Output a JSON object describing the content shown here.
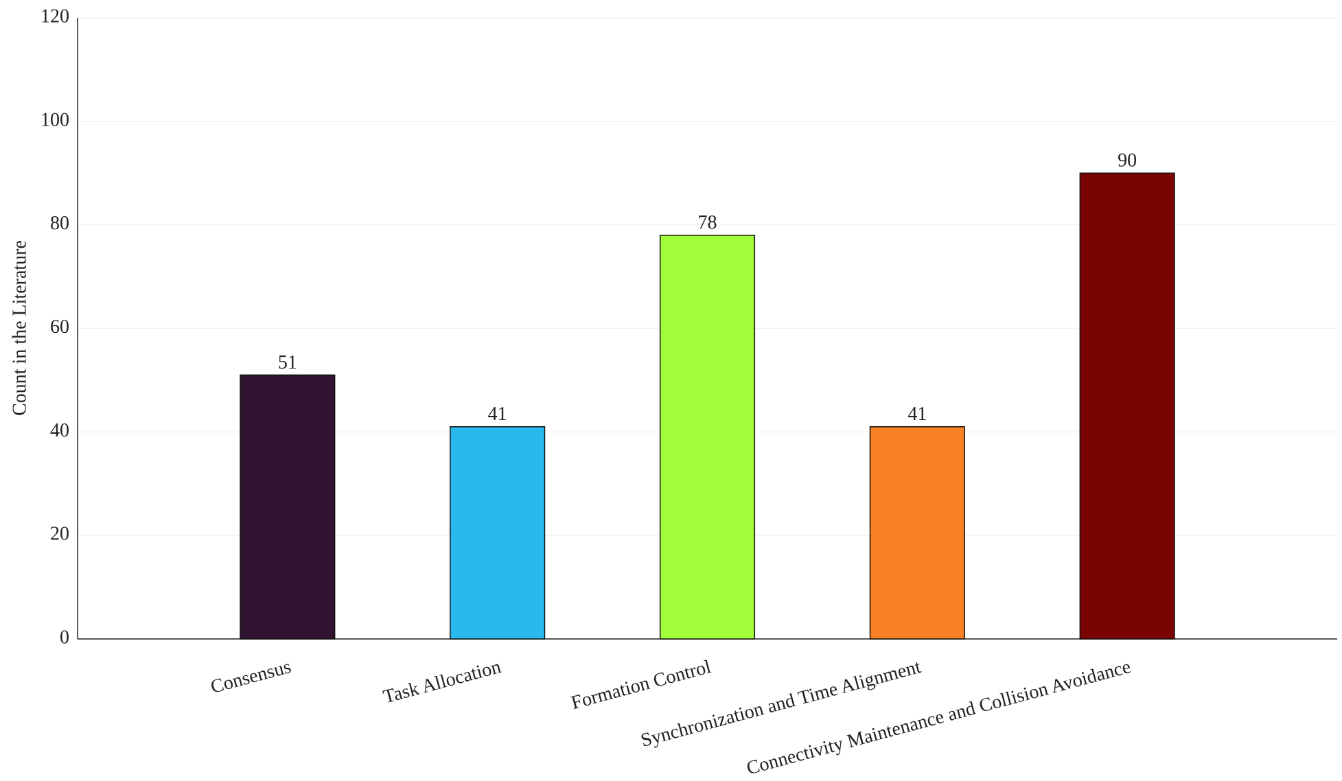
{
  "chart_data": {
    "type": "bar",
    "y_label": "Count in the Literature",
    "categories": [
      "Consensus",
      "Task Allocation",
      "Formation Control",
      "Synchronization and Time Alignment",
      "Connectivity Maintenance and Collision Avoidance"
    ],
    "values": [
      51,
      41,
      78,
      41,
      90
    ],
    "colors": [
      "#311432",
      "#29b9ec",
      "#a2fc3c",
      "#f98125",
      "#7a0403"
    ],
    "ylim": [
      0,
      120
    ],
    "yticks": [
      0,
      20,
      40,
      60,
      80,
      100,
      120
    ],
    "grid": true
  }
}
